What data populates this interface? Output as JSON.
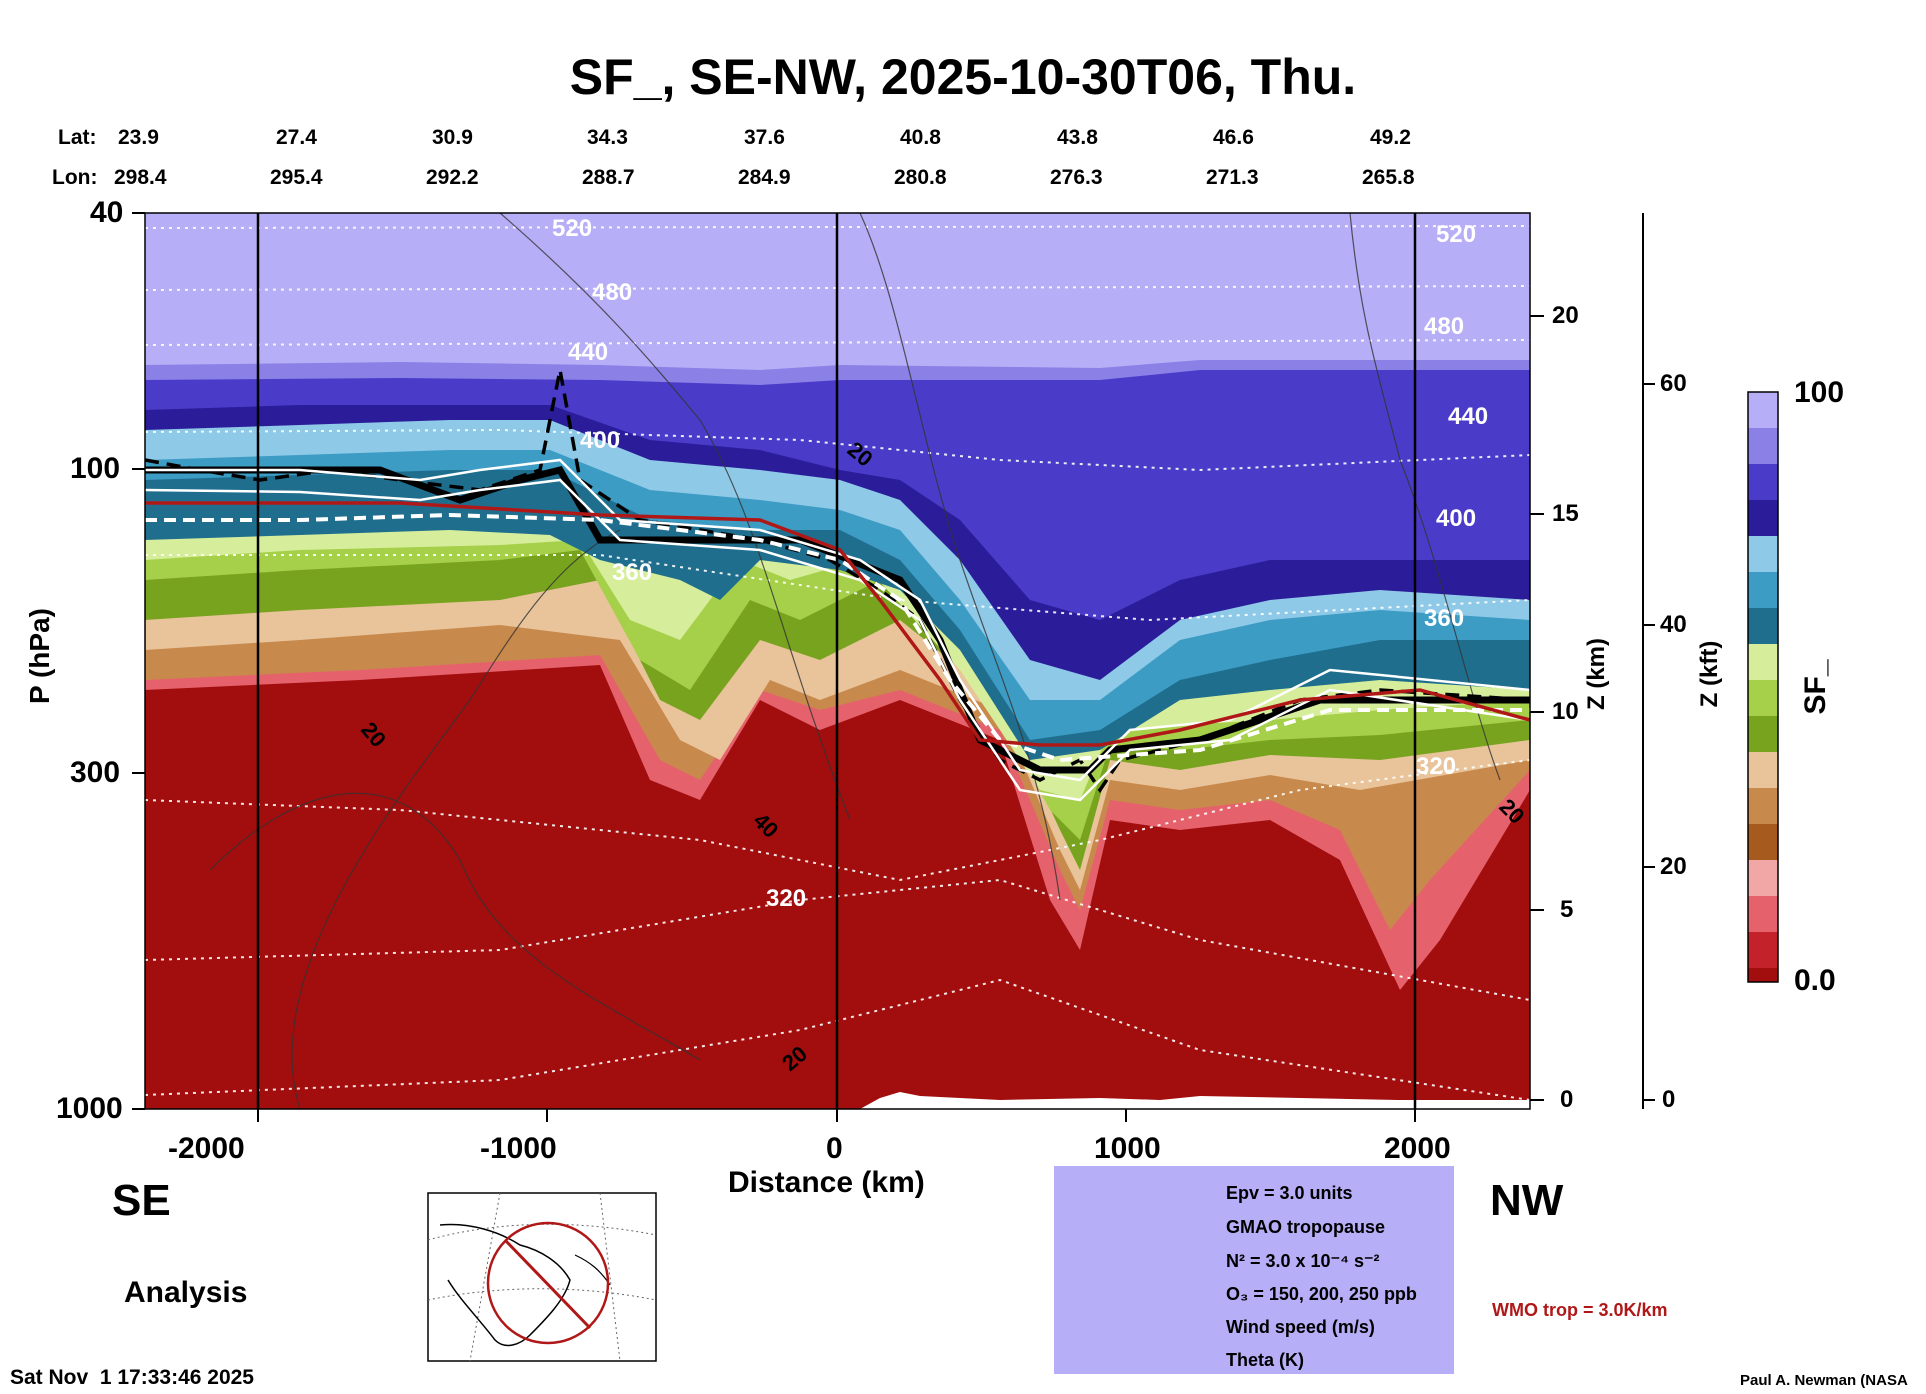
{
  "title": "SF_, SE-NW, 2025-10-30T06, Thu.",
  "header": {
    "lat_label": "Lat:",
    "lon_label": "Lon:",
    "lat": [
      "23.9",
      "27.4",
      "30.9",
      "34.3",
      "37.6",
      "40.8",
      "43.8",
      "46.6",
      "49.2"
    ],
    "lon": [
      "298.4",
      "295.4",
      "292.2",
      "288.7",
      "284.9",
      "280.8",
      "276.3",
      "271.3",
      "265.8"
    ]
  },
  "axes": {
    "ylabel": "P (hPa)",
    "xlabel": "Distance (km)",
    "zkm_label": "Z (km)",
    "zkft_label": "Z (kft)",
    "p_ticks": [
      "40",
      "100",
      "300",
      "1000"
    ],
    "x_ticks": [
      "-2000",
      "-1000",
      "0",
      "1000",
      "2000"
    ],
    "zkm_ticks": [
      "20",
      "15",
      "10",
      "5",
      "0"
    ],
    "zkft_ticks": [
      "60",
      "40",
      "20",
      "0"
    ]
  },
  "colorbar": {
    "label": "SF_",
    "max": "100",
    "min": "0.0"
  },
  "direction": {
    "left": "SE",
    "right": "NW"
  },
  "analysis_label": "Analysis",
  "timestamp": "Sat Nov  1 17:33:46 2025",
  "credit": "Paul A. Newman (NASA",
  "wmo_label": "WMO trop = 3.0K/km",
  "legend": {
    "epv": "Epv = 3.0 units",
    "gmao": "GMAO tropopause",
    "n2": "N² = 3.0 x 10⁻⁴ s⁻²",
    "o3": "O₃ = 150, 200, 250 ppb",
    "wind": "Wind speed (m/s)",
    "theta": "Theta (K)"
  },
  "chart_data": {
    "type": "heatmap",
    "title": "SF_, SE-NW, 2025-10-30T06, Thu.",
    "xlabel": "Distance (km)",
    "ylabel": "P (hPa)",
    "xlim": [
      -2230,
      2230
    ],
    "ylim": [
      1000,
      40
    ],
    "colorbar_range": [
      0.0,
      100
    ],
    "colors": [
      "#a20d0d",
      "#c4222a",
      "#e5626c",
      "#f2a7a7",
      "#a75a1e",
      "#c8894c",
      "#e9c49a",
      "#77a31e",
      "#a6d04a",
      "#d6ee9b",
      "#1f6e8e",
      "#3c9cc4",
      "#8fc9e8",
      "#2b1c9a",
      "#4a3cc9",
      "#8a80e6",
      "#b6aef6"
    ],
    "tropopause_km": [
      [
        -2230,
        98
      ],
      [
        -1400,
        98
      ],
      [
        -1100,
        105
      ],
      [
        -900,
        95
      ],
      [
        -780,
        135
      ],
      [
        -400,
        130
      ],
      [
        0,
        140
      ],
      [
        150,
        160
      ],
      [
        350,
        215
      ],
      [
        600,
        290
      ],
      [
        800,
        290
      ],
      [
        1000,
        240
      ],
      [
        1200,
        225
      ],
      [
        1600,
        220
      ],
      [
        2230,
        225
      ]
    ],
    "theta_contours": [
      {
        "label": "520",
        "p": [
          [
            -2230,
            42
          ],
          [
            2230,
            42
          ]
        ]
      },
      {
        "label": "480",
        "p": [
          [
            -2230,
            55
          ],
          [
            2230,
            53
          ]
        ]
      },
      {
        "label": "440",
        "p": [
          [
            -2230,
            72
          ],
          [
            2230,
            68
          ]
        ]
      },
      {
        "label": "400",
        "p": [
          [
            -2230,
            91
          ],
          [
            -900,
            89
          ],
          [
            0,
            95
          ],
          [
            1000,
            110
          ],
          [
            2230,
            105
          ]
        ]
      },
      {
        "label": "360",
        "p": [
          [
            -2230,
            130
          ],
          [
            -1000,
            128
          ],
          [
            0,
            150
          ],
          [
            1000,
            185
          ],
          [
            2230,
            170
          ]
        ]
      },
      {
        "label": "320",
        "p": [
          [
            -2230,
            330
          ],
          [
            -1000,
            320
          ],
          [
            0,
            430
          ],
          [
            1000,
            330
          ],
          [
            2230,
            305
          ]
        ]
      }
    ],
    "wind_labels": [
      "20",
      "40",
      "20",
      "20",
      "20"
    ]
  }
}
